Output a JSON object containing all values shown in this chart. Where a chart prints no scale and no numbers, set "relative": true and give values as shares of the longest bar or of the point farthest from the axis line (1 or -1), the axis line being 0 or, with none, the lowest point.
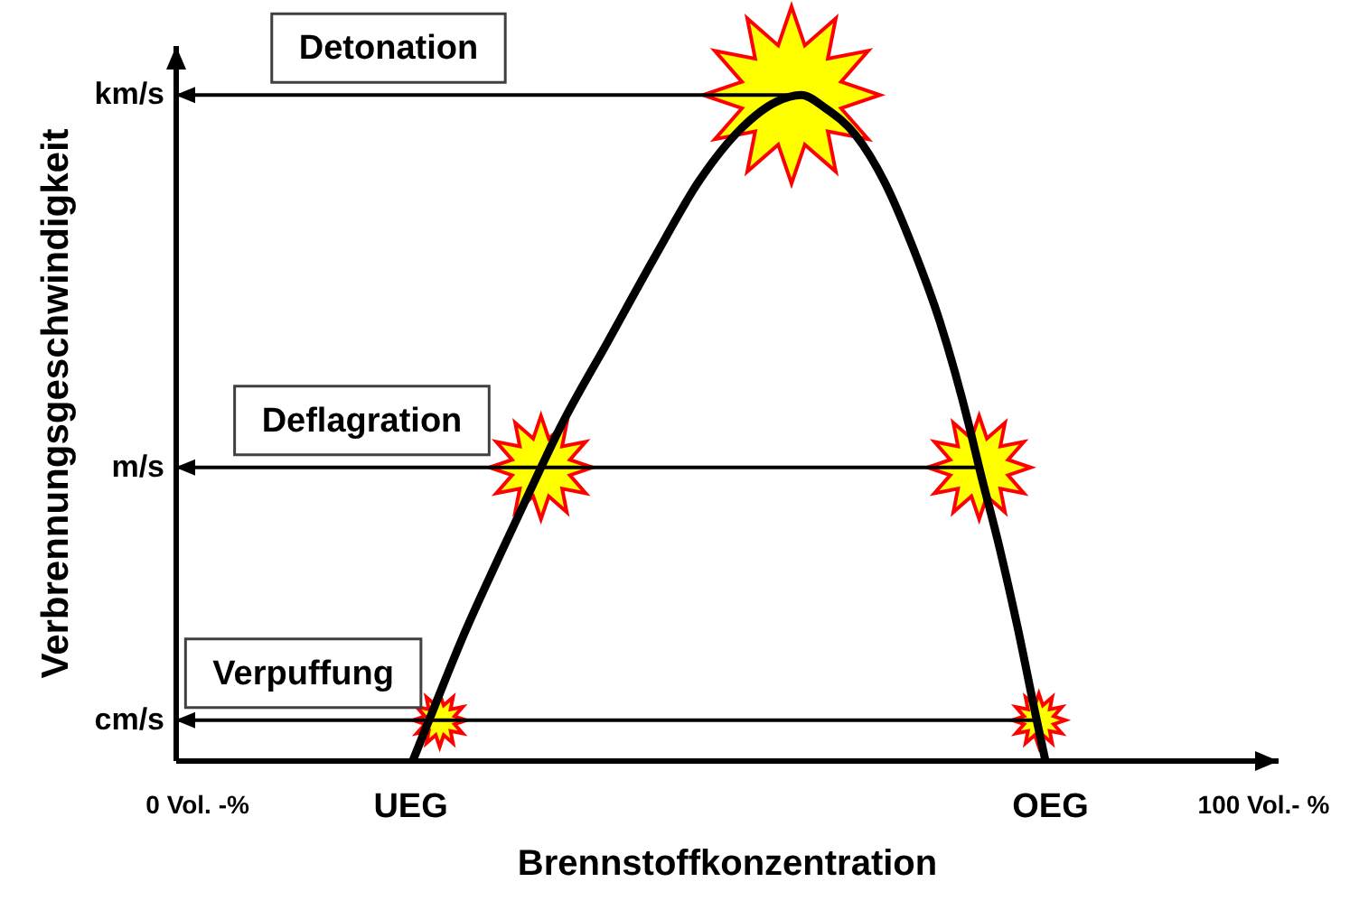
{
  "chart_data": {
    "type": "line",
    "relative": true,
    "xlabel": "Brennstoffkonzentration",
    "ylabel": "Verbrennungsgeschwindigkeit",
    "xlim": [
      -2,
      101.4
    ],
    "xticks": [
      {
        "value": 0,
        "label": "0 Vol. -%"
      },
      {
        "value": 20,
        "label": "UEG"
      },
      {
        "value": 80,
        "label": "OEG"
      },
      {
        "value": 100,
        "label": "100 Vol.- %"
      }
    ],
    "series": [
      {
        "type": "bubble",
        "marker": "star",
        "color": "#ffff00",
        "x": [
          22.8,
          32.3,
          55.8,
          73.4,
          79
        ],
        "values": [
          0.06,
          0.44,
          1,
          0.44,
          0.06
        ],
        "sizes": [
          0.09,
          0.34,
          1,
          0.34,
          0.09
        ]
      },
      {
        "color": "#000000",
        "x": [
          -2,
          56.7
        ],
        "values": [
          1,
          1
        ]
      },
      {
        "color": "#000000",
        "x": [
          -2,
          73.4
        ],
        "values": [
          0.44,
          0.44
        ]
      },
      {
        "color": "#000000",
        "x": [
          -2,
          78.8
        ],
        "values": [
          0.06,
          0.06
        ]
      },
      {
        "color": "#000000",
        "x": [
          20.3,
          21.8,
          25.1,
          28.5,
          32.3,
          34.1,
          38.6,
          43.1,
          47.1,
          51.1,
          54.4,
          56.7,
          59,
          61.8,
          64.5,
          67.2,
          69.7,
          72.5,
          73.4,
          75.3,
          77,
          78.8,
          79.6
        ],
        "values": [
          0,
          0.06,
          0.19,
          0.31,
          0.44,
          0.5,
          0.63,
          0.76,
          0.87,
          0.95,
          0.99,
          1,
          0.98,
          0.94,
          0.87,
          0.77,
          0.66,
          0.5,
          0.44,
          0.32,
          0.2,
          0.06,
          0
        ]
      }
    ],
    "annotations": [
      {
        "text": "km/s",
        "x": -2,
        "y": 1
      },
      {
        "text": "m/s",
        "x": -2,
        "y": 0.44
      },
      {
        "text": "cm/s",
        "x": -2,
        "y": 0.06
      },
      {
        "text": "Detonation",
        "x": 18,
        "y": 1
      },
      {
        "text": "Deflagration",
        "x": 15.5,
        "y": 0.44
      },
      {
        "text": "Verpuffung",
        "x": 10,
        "y": 0.06
      }
    ]
  }
}
